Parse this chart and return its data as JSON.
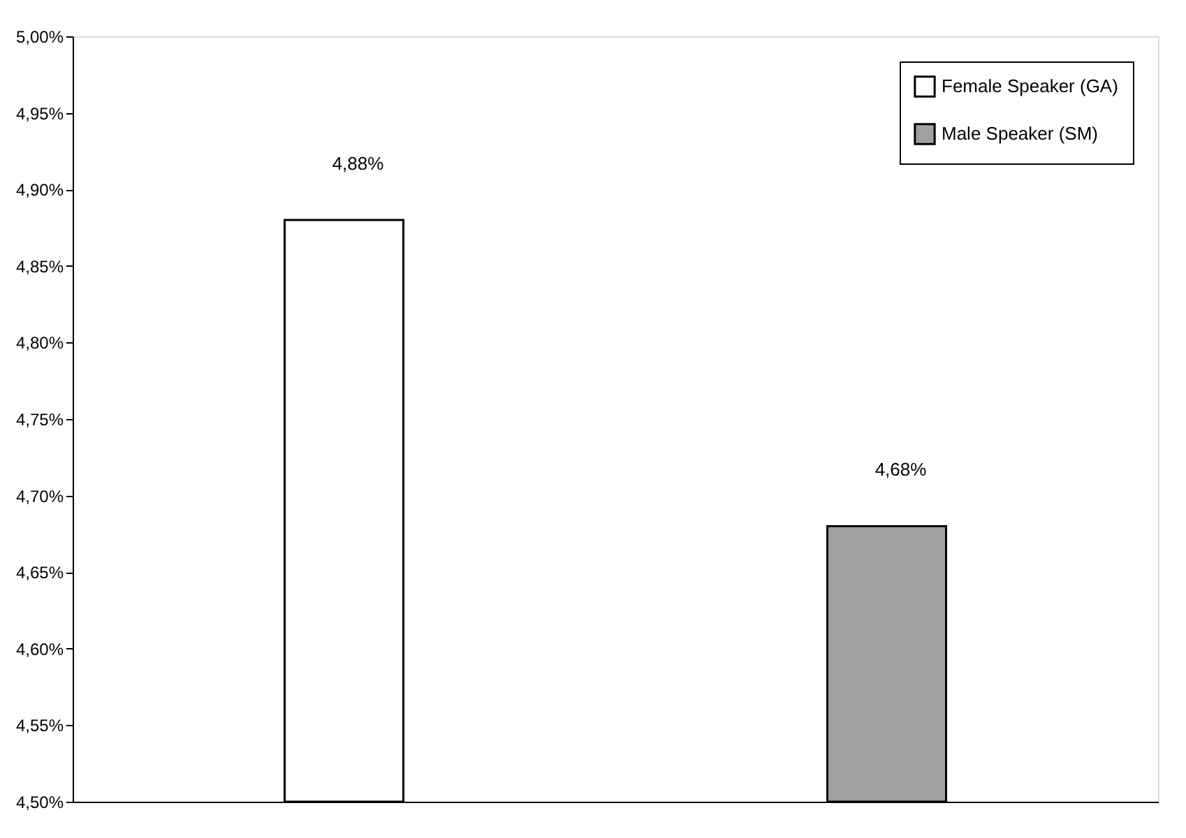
{
  "chart_data": {
    "type": "bar",
    "categories": [
      null,
      null
    ],
    "series": [
      {
        "name": "Female Speaker (GA)",
        "color": "#ffffff",
        "values": [
          4.88,
          null
        ],
        "value_labels": [
          "4,88%",
          null
        ]
      },
      {
        "name": "Male Speaker (SM)",
        "color": "#a0a0a0",
        "values": [
          null,
          4.68
        ],
        "value_labels": [
          null,
          "4,68%"
        ]
      }
    ],
    "ylim": [
      4.5,
      5.0
    ],
    "yticks": [
      {
        "value": 4.5,
        "label": "4,50%"
      },
      {
        "value": 4.55,
        "label": "4,55%"
      },
      {
        "value": 4.6,
        "label": "4,60%"
      },
      {
        "value": 4.65,
        "label": "4,65%"
      },
      {
        "value": 4.7,
        "label": "4,70%"
      },
      {
        "value": 4.75,
        "label": "4,75%"
      },
      {
        "value": 4.8,
        "label": "4,80%"
      },
      {
        "value": 4.85,
        "label": "4,85%"
      },
      {
        "value": 4.9,
        "label": "4,90%"
      },
      {
        "value": 4.95,
        "label": "4,95%"
      },
      {
        "value": 5.0,
        "label": "5,00%"
      }
    ],
    "grid": false,
    "legend": "top right"
  }
}
